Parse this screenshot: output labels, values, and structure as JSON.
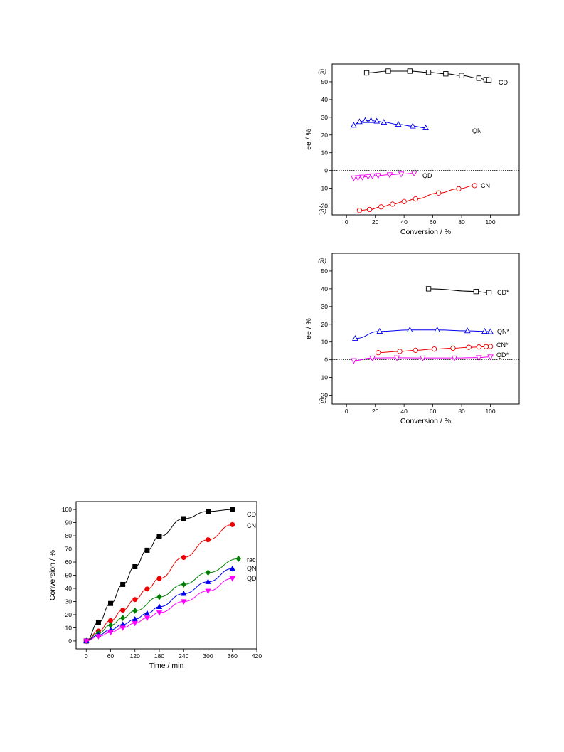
{
  "chart_data": [
    {
      "id": "ee_top",
      "type": "line",
      "xlabel": "Conversion / %",
      "ylabel": "ee / %",
      "xlim": [
        -10,
        120
      ],
      "ylim": [
        -25,
        60
      ],
      "xticks": [
        0,
        20,
        40,
        60,
        80,
        100
      ],
      "yticks": [
        -20,
        -10,
        0,
        10,
        20,
        30,
        40,
        50
      ],
      "top_label": "(R)",
      "bottom_label": "(S)",
      "zero_line": true,
      "series": [
        {
          "name": "CD",
          "color": "#000000",
          "marker": "square-open",
          "x": [
            14,
            29,
            44,
            57,
            69,
            80,
            92,
            97,
            99
          ],
          "y": [
            55,
            56,
            56,
            55.3,
            54.5,
            53.5,
            52,
            51.2,
            51
          ]
        },
        {
          "name": "QN",
          "color": "#0000ee",
          "marker": "triangle-up-open",
          "x": [
            5,
            9,
            13,
            17,
            21,
            26,
            36,
            46,
            55
          ],
          "y": [
            25.5,
            27.5,
            28.2,
            28.2,
            27.8,
            27.2,
            26,
            25,
            24
          ]
        },
        {
          "name": "QD",
          "color": "#ee00ee",
          "marker": "triangle-down-open",
          "x": [
            5,
            8,
            11,
            15,
            18,
            22,
            30,
            38,
            47
          ],
          "y": [
            -4.2,
            -4,
            -3.7,
            -3.4,
            -3,
            -2.8,
            -2.4,
            -2,
            -1.6
          ]
        },
        {
          "name": "CN",
          "color": "#ee0000",
          "marker": "circle-open",
          "x": [
            9,
            16,
            24,
            32,
            40,
            48,
            64,
            78,
            89
          ],
          "y": [
            -22.5,
            -22,
            -20.5,
            -19,
            -17.5,
            -16,
            -12.7,
            -10.3,
            -8.5
          ]
        }
      ]
    },
    {
      "id": "ee_bottom",
      "type": "line",
      "xlabel": "Conversion / %",
      "ylabel": "ee / %",
      "xlim": [
        -10,
        120
      ],
      "ylim": [
        -25,
        60
      ],
      "xticks": [
        0,
        20,
        40,
        60,
        80,
        100
      ],
      "yticks": [
        -20,
        -10,
        0,
        10,
        20,
        30,
        40,
        50
      ],
      "top_label": "(R)",
      "bottom_label": "(S)",
      "zero_line": true,
      "series": [
        {
          "name": "CD*",
          "color": "#000000",
          "marker": "square-open",
          "x": [
            57,
            90,
            99
          ],
          "y": [
            40,
            38.5,
            37.8
          ]
        },
        {
          "name": "QN*",
          "color": "#0000ee",
          "marker": "triangle-up-open",
          "x": [
            6,
            23,
            44,
            63,
            84,
            96,
            100
          ],
          "y": [
            12,
            16,
            16.8,
            16.8,
            16.3,
            16,
            15.8
          ]
        },
        {
          "name": "CN*",
          "color": "#ee0000",
          "marker": "circle-open",
          "x": [
            22,
            37,
            48,
            61,
            74,
            85,
            92,
            97,
            100
          ],
          "y": [
            4,
            4.7,
            5.3,
            6,
            6.5,
            7,
            7.2,
            7.4,
            7.5
          ]
        },
        {
          "name": "QD*",
          "color": "#ee00ee",
          "marker": "triangle-down-open",
          "x": [
            5,
            18,
            35,
            53,
            75,
            92,
            100
          ],
          "y": [
            -0.5,
            1,
            1.1,
            1,
            1,
            1.2,
            1.6
          ]
        }
      ]
    },
    {
      "id": "conversion_time",
      "type": "line",
      "xlabel": "Time / min",
      "ylabel": "Conversion / %",
      "xlim": [
        -25,
        420
      ],
      "ylim": [
        -6,
        106
      ],
      "xticks": [
        0,
        60,
        120,
        180,
        240,
        300,
        360,
        420
      ],
      "yticks": [
        0,
        10,
        20,
        30,
        40,
        50,
        60,
        70,
        80,
        90,
        100
      ],
      "series": [
        {
          "name": "CD",
          "color": "#000000",
          "marker": "square-filled",
          "x": [
            0,
            30,
            60,
            90,
            120,
            150,
            180,
            240,
            300,
            360
          ],
          "y": [
            0,
            14,
            28.5,
            43,
            56.5,
            69,
            79.5,
            93,
            98.5,
            100
          ]
        },
        {
          "name": "CN",
          "color": "#ee0000",
          "marker": "circle-filled",
          "x": [
            0,
            30,
            60,
            90,
            120,
            150,
            180,
            240,
            300,
            360
          ],
          "y": [
            0,
            7.5,
            15.5,
            23.5,
            31.5,
            39.5,
            47.5,
            63.5,
            77,
            88.5
          ]
        },
        {
          "name": "rac.",
          "color": "#008000",
          "marker": "diamond-filled",
          "x": [
            0,
            30,
            60,
            90,
            120,
            180,
            240,
            300,
            375
          ],
          "y": [
            0,
            6,
            12,
            17.5,
            23,
            33.5,
            43,
            52,
            62.5
          ]
        },
        {
          "name": "QN",
          "color": "#0000ee",
          "marker": "triangle-up-filled",
          "x": [
            0,
            30,
            60,
            90,
            120,
            150,
            180,
            240,
            300,
            360
          ],
          "y": [
            0,
            4.5,
            8.5,
            12.5,
            16.5,
            21,
            26,
            36,
            45,
            55
          ]
        },
        {
          "name": "QD",
          "color": "#ff00ff",
          "marker": "triangle-down-filled",
          "x": [
            0,
            30,
            60,
            90,
            120,
            150,
            180,
            240,
            300,
            360
          ],
          "y": [
            0,
            3.5,
            6.5,
            10,
            13.5,
            17.5,
            21.5,
            30,
            38,
            47.5
          ]
        }
      ]
    }
  ]
}
